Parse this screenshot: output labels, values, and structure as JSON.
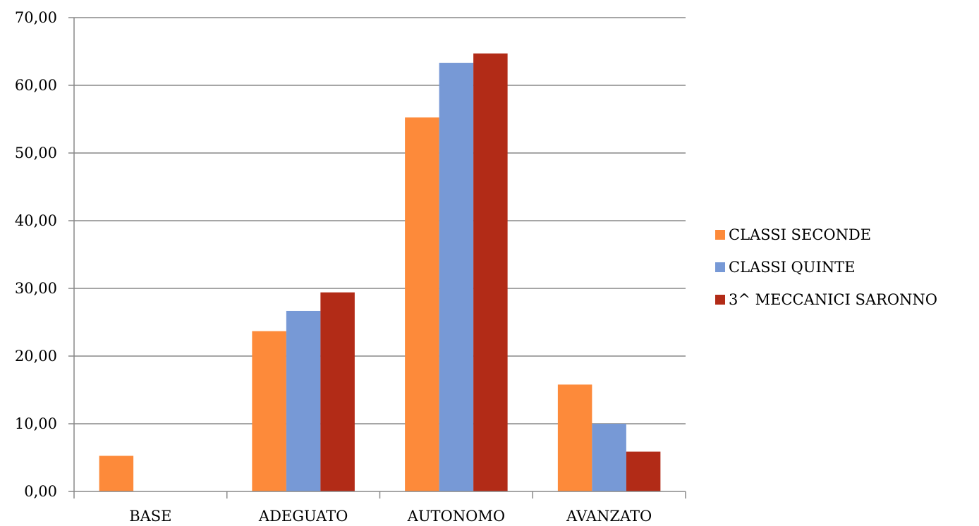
{
  "chart_data": {
    "type": "bar",
    "categories": [
      "BASE",
      "ADEGUATO",
      "AUTONOMO",
      "AVANZATO"
    ],
    "series": [
      {
        "name": "CLASSI SECONDE",
        "values": [
          5.26,
          23.68,
          55.26,
          15.79
        ],
        "color": "#fd8a3a"
      },
      {
        "name": "CLASSI QUINTE",
        "values": [
          0,
          26.67,
          63.33,
          10.0
        ],
        "color": "#7799d6"
      },
      {
        "name": "3^ MECCANICI SARONNO",
        "values": [
          0,
          29.41,
          64.71,
          5.88
        ],
        "color": "#b22b17"
      }
    ],
    "ylim": [
      0,
      70
    ],
    "ytick_step": 10,
    "ytick_labels": [
      "0,00",
      "10,00",
      "20,00",
      "30,00",
      "40,00",
      "50,00",
      "60,00",
      "70,00"
    ],
    "grid": true,
    "grid_color": "#888888",
    "legend_position": "right",
    "title": "",
    "xlabel": "",
    "ylabel": ""
  }
}
